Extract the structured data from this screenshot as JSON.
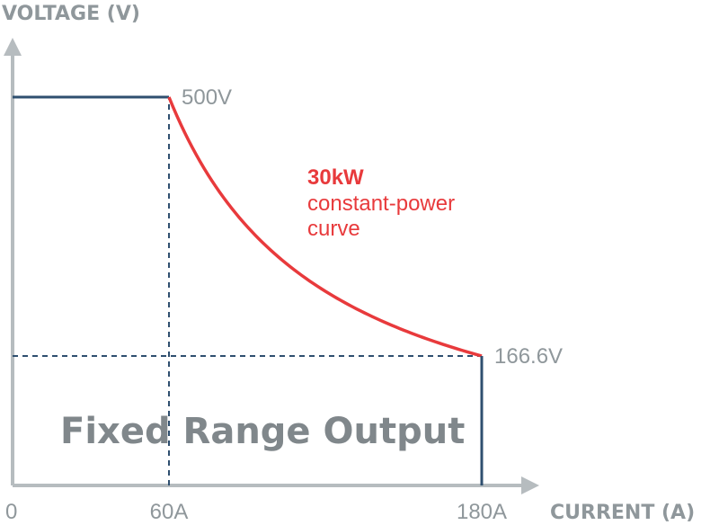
{
  "chart_data": {
    "type": "line",
    "title": "Fixed Range Output",
    "xlabel": "CURRENT (A)",
    "ylabel": "VOLTAGE (V)",
    "xlim": [
      0,
      200
    ],
    "ylim": [
      0,
      600
    ],
    "x_ticks": [
      {
        "value": 0,
        "label": "0"
      },
      {
        "value": 60,
        "label": "60A"
      },
      {
        "value": 180,
        "label": "180A"
      }
    ],
    "point_labels": [
      {
        "value": 500,
        "label": "500V"
      },
      {
        "value": 166.6,
        "label": "166.6V"
      }
    ],
    "series": [
      {
        "segment": "constant-voltage",
        "color": "#2f4f6f",
        "x": [
          0,
          60
        ],
        "y": [
          500,
          500
        ]
      },
      {
        "segment": "constant-power",
        "color": "#e83a3c",
        "power_kw": 30,
        "x": [
          60,
          70,
          80,
          90,
          100,
          110,
          120,
          130,
          140,
          150,
          160,
          170,
          180
        ],
        "y": [
          500,
          428.6,
          375,
          333.3,
          300,
          272.7,
          250,
          230.8,
          214.3,
          200,
          187.5,
          176.5,
          166.6
        ]
      },
      {
        "segment": "current-limit",
        "color": "#2f4f6f",
        "x": [
          180,
          180
        ],
        "y": [
          166.6,
          0
        ]
      }
    ],
    "reference_lines": [
      {
        "orientation": "vertical",
        "at": 60,
        "from": 0,
        "to": 500,
        "style": "dashed",
        "color": "#2f4f6f"
      },
      {
        "orientation": "horizontal",
        "at": 166.6,
        "from": 0,
        "to": 180,
        "style": "dashed",
        "color": "#2f4f6f"
      }
    ],
    "annotation": {
      "line1": "30kW",
      "line2": "constant-power",
      "line3": "curve",
      "color": "#e83a3c"
    },
    "axis_color": "#b6bcbf",
    "grid": false
  }
}
